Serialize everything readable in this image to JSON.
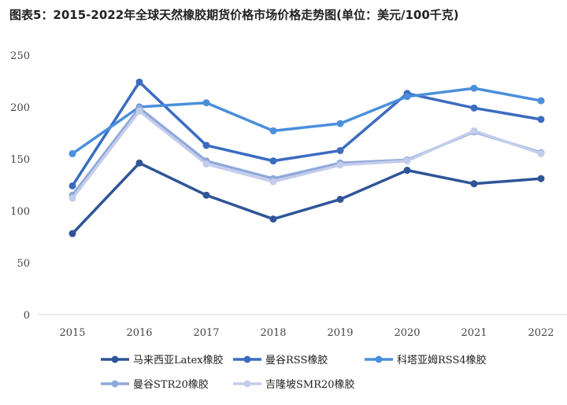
{
  "chart_data": {
    "type": "line",
    "title": "图表5：2015-2022年全球天然橡胶期货价格市场价格走势图(单位：美元/100千克)",
    "xlabel": "",
    "ylabel": "",
    "categories": [
      "2015",
      "2016",
      "2017",
      "2018",
      "2019",
      "2020",
      "2021",
      "2022"
    ],
    "ylim": [
      0,
      250
    ],
    "yticks": [
      0,
      50,
      100,
      150,
      200,
      250
    ],
    "grid": false,
    "legend_position": "bottom",
    "series": [
      {
        "name": "马来西亚Latex橡胶",
        "color": "#2f5597",
        "values": [
          78,
          146,
          115,
          92,
          111,
          139,
          126,
          131
        ]
      },
      {
        "name": "曼谷RSS橡胶",
        "color": "#3b6cc0",
        "values": [
          124,
          224,
          163,
          148,
          158,
          213,
          199,
          188
        ]
      },
      {
        "name": "科塔亚姆RSS4橡胶",
        "color": "#4a8fdb",
        "values": [
          155,
          200,
          204,
          177,
          184,
          210,
          218,
          206
        ]
      },
      {
        "name": "曼谷STR20橡胶",
        "color": "#8fa8db",
        "values": [
          115,
          199,
          148,
          131,
          146,
          149,
          176,
          156
        ]
      },
      {
        "name": "吉隆坡SMR20橡胶",
        "color": "#c3cdeb",
        "values": [
          112,
          196,
          145,
          128,
          144,
          148,
          177,
          155
        ]
      }
    ]
  }
}
